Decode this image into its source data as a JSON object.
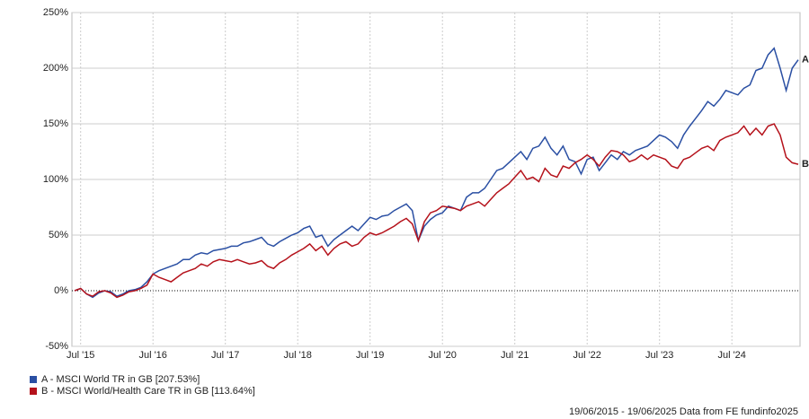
{
  "chart_data": {
    "type": "line",
    "categories": [
      null,
      "Jul '15",
      null,
      null,
      null,
      null,
      null,
      null,
      null,
      null,
      null,
      null,
      null,
      "Jul '16",
      null,
      null,
      null,
      null,
      null,
      null,
      null,
      null,
      null,
      null,
      null,
      "Jul '17",
      null,
      null,
      null,
      null,
      null,
      null,
      null,
      null,
      null,
      null,
      null,
      "Jul '18",
      null,
      null,
      null,
      null,
      null,
      null,
      null,
      null,
      null,
      null,
      null,
      "Jul '19",
      null,
      null,
      null,
      null,
      null,
      null,
      null,
      null,
      null,
      null,
      null,
      "Jul '20",
      null,
      null,
      null,
      null,
      null,
      null,
      null,
      null,
      null,
      null,
      null,
      "Jul '21",
      null,
      null,
      null,
      null,
      null,
      null,
      null,
      null,
      null,
      null,
      null,
      "Jul '22",
      null,
      null,
      null,
      null,
      null,
      null,
      null,
      null,
      null,
      null,
      null,
      "Jul '23",
      null,
      null,
      null,
      null,
      null,
      null,
      null,
      null,
      null,
      null,
      null,
      "Jul '24",
      null,
      null,
      null,
      null,
      null,
      null,
      null,
      null,
      null,
      null,
      null
    ],
    "series": [
      {
        "name": "A - MSCI World TR in GB [207.53%]",
        "end_label": "A",
        "color": "#2a4fa3",
        "values": [
          0,
          2,
          -3,
          -6,
          -2,
          0,
          -1,
          -5,
          -3,
          0,
          1,
          3,
          8,
          15,
          18,
          20,
          22,
          24,
          28,
          28,
          32,
          34,
          33,
          36,
          37,
          38,
          40,
          40,
          43,
          44,
          46,
          48,
          42,
          40,
          44,
          47,
          50,
          52,
          56,
          58,
          48,
          50,
          40,
          46,
          50,
          54,
          58,
          54,
          60,
          66,
          64,
          67,
          68,
          72,
          75,
          78,
          72,
          45,
          58,
          64,
          68,
          70,
          76,
          74,
          72,
          84,
          88,
          88,
          92,
          100,
          108,
          110,
          115,
          120,
          125,
          118,
          128,
          130,
          138,
          128,
          122,
          130,
          118,
          116,
          105,
          118,
          120,
          108,
          115,
          122,
          118,
          125,
          122,
          126,
          128,
          130,
          135,
          140,
          138,
          134,
          128,
          140,
          148,
          155,
          162,
          170,
          166,
          172,
          180,
          178,
          176,
          182,
          185,
          198,
          200,
          212,
          218,
          200,
          180,
          200,
          207.53
        ]
      },
      {
        "name": "B - MSCI World/Health Care TR in GB [113.64%]",
        "end_label": "B",
        "color": "#b5121b",
        "values": [
          0,
          2,
          -3,
          -5,
          -1,
          0,
          -2,
          -6,
          -4,
          -1,
          0,
          2,
          5,
          15,
          12,
          10,
          8,
          12,
          16,
          18,
          20,
          24,
          22,
          26,
          28,
          27,
          26,
          28,
          26,
          24,
          25,
          27,
          22,
          20,
          25,
          28,
          32,
          35,
          38,
          42,
          36,
          40,
          32,
          38,
          42,
          44,
          40,
          42,
          48,
          52,
          50,
          52,
          55,
          58,
          62,
          65,
          60,
          45,
          62,
          70,
          72,
          76,
          75,
          74,
          72,
          76,
          78,
          80,
          76,
          82,
          88,
          92,
          96,
          102,
          108,
          100,
          102,
          98,
          110,
          104,
          102,
          112,
          110,
          115,
          118,
          122,
          118,
          112,
          120,
          126,
          125,
          122,
          116,
          118,
          122,
          118,
          122,
          120,
          118,
          112,
          110,
          118,
          120,
          124,
          128,
          130,
          126,
          135,
          138,
          140,
          142,
          148,
          140,
          146,
          140,
          148,
          150,
          140,
          120,
          115,
          113.64
        ]
      }
    ],
    "ylim": [
      -50,
      250
    ],
    "yticks": [
      {
        "value": -50,
        "label": "-50%"
      },
      {
        "value": 0,
        "label": "0%"
      },
      {
        "value": 50,
        "label": "50%"
      },
      {
        "value": 100,
        "label": "100%"
      },
      {
        "value": 150,
        "label": "150%"
      },
      {
        "value": 200,
        "label": "200%"
      },
      {
        "value": 250,
        "label": "250%"
      }
    ],
    "grid": true,
    "footer": "19/06/2015 - 19/06/2025 Data from FE fundinfo2025"
  }
}
